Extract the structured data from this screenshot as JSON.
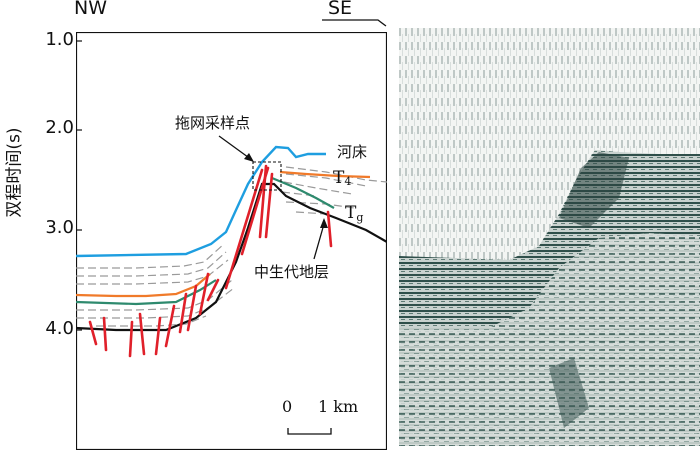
{
  "directions": {
    "left": "NW",
    "right": "SE"
  },
  "y_axis": {
    "label": "双程时间(s)",
    "ticks": [
      "1.0",
      "2.0",
      "3.0",
      "4.0"
    ]
  },
  "annotations": {
    "sampling_point": "拖网采样点",
    "riverbed": "河床",
    "t4": "T",
    "t4_sub": "4",
    "tg": "T",
    "tg_sub": "g",
    "mesozoic": "中生代地层"
  },
  "scale": {
    "start": "0",
    "end": "1 km"
  },
  "colors": {
    "riverbed": "#1e9ee0",
    "t4": "#f07a2a",
    "tg": "#2e8a6e",
    "mesozoic": "#111111",
    "faults": "#e0202a",
    "internal": "#9a9a9a"
  }
}
